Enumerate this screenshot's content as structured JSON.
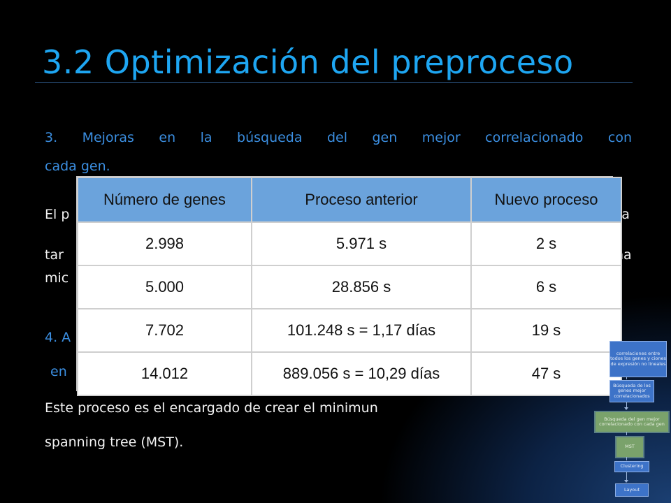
{
  "slide": {
    "title": "3.2  Optimización del preproceso",
    "item3_line1": "3.   Mejoras  en  la  búsqueda  del  gen  mejor  correlacionado  con",
    "item3_line2": "cada gen.",
    "para_left_1": "El p",
    "para_right_1": "ía",
    "para_left_2": "tar",
    "para_right_2": "na",
    "para_left_3": "mic",
    "item4_left": "4. A",
    "item4_line2_left": "en",
    "body_line1": "Este proceso es el encargado de crear el minimun",
    "body_line2": "spanning tree (MST)."
  },
  "table": {
    "headers": [
      "Número de genes",
      "Proceso anterior",
      "Nuevo proceso"
    ],
    "rows": [
      [
        "2.998",
        "5.971  s",
        "2 s"
      ],
      [
        "5.000",
        "28.856  s",
        "6 s"
      ],
      [
        "7.702",
        "101.248  s = 1,17 días",
        "19 s"
      ],
      [
        "14.012",
        "889.056  s = 10,29 días",
        "47 s"
      ]
    ]
  },
  "flow": {
    "box1": "correlaciones entre todos los genes y ciones de expresión no lineales",
    "box2": "Búsqueda de los genes mejor correlacionados",
    "box3": "Búsqueda del gen mejor correlacionado con cada gen",
    "box4": "MST",
    "box5": "Clustering",
    "box6": "Layout"
  },
  "colors": {
    "title": "#1ea6f2",
    "text_blue": "#3b8ee0",
    "table_header": "#6ba3dc",
    "flow_blue": "#3d73c8",
    "flow_green": "#7aa26b"
  }
}
